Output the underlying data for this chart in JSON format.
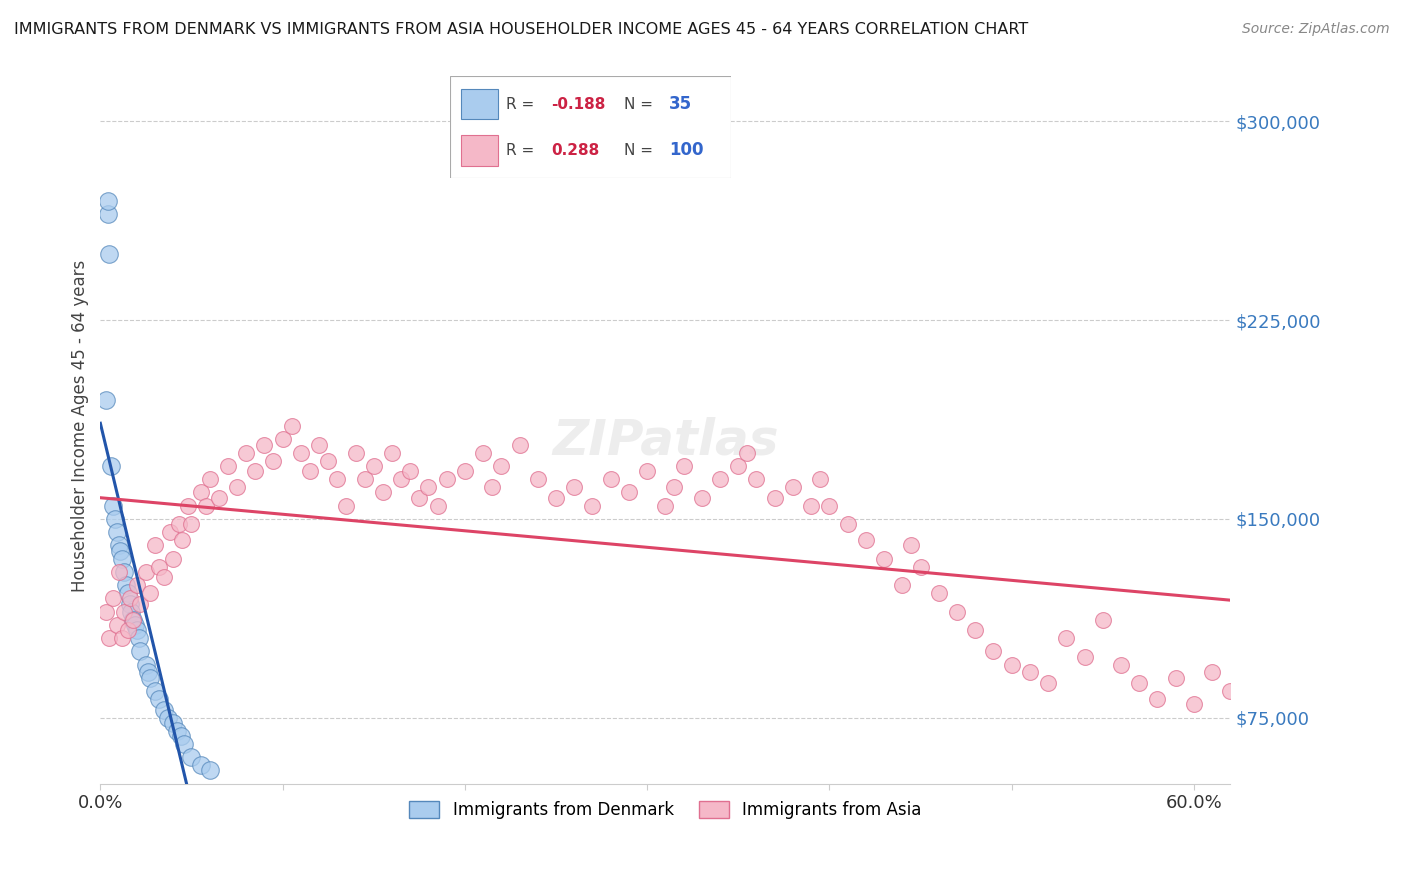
{
  "title": "IMMIGRANTS FROM DENMARK VS IMMIGRANTS FROM ASIA HOUSEHOLDER INCOME AGES 45 - 64 YEARS CORRELATION CHART",
  "source": "Source: ZipAtlas.com",
  "ylabel": "Householder Income Ages 45 - 64 years",
  "xlim": [
    0.0,
    0.62
  ],
  "ylim": [
    50000,
    320000
  ],
  "yticks": [
    75000,
    150000,
    225000,
    300000
  ],
  "ytick_labels": [
    "$75,000",
    "$150,000",
    "$225,000",
    "$300,000"
  ],
  "xticks": [
    0.0,
    0.1,
    0.2,
    0.3,
    0.4,
    0.5,
    0.6
  ],
  "xtick_labels": [
    "0.0%",
    "",
    "",
    "",
    "",
    "",
    "60.0%"
  ],
  "denmark_color": "#aaccee",
  "denmark_edge": "#5588bb",
  "asia_color": "#f5b8c8",
  "asia_edge": "#e07090",
  "denmark_line_color": "#2255aa",
  "asia_line_color": "#dd4466",
  "denmark_x": [
    0.003,
    0.004,
    0.004,
    0.005,
    0.006,
    0.007,
    0.008,
    0.009,
    0.01,
    0.011,
    0.012,
    0.013,
    0.014,
    0.015,
    0.016,
    0.017,
    0.018,
    0.019,
    0.02,
    0.021,
    0.022,
    0.025,
    0.026,
    0.027,
    0.03,
    0.032,
    0.035,
    0.037,
    0.04,
    0.042,
    0.044,
    0.046,
    0.05,
    0.055,
    0.06
  ],
  "denmark_y": [
    195000,
    265000,
    270000,
    250000,
    170000,
    155000,
    150000,
    145000,
    140000,
    138000,
    135000,
    130000,
    125000,
    122000,
    118000,
    115000,
    112000,
    110000,
    108000,
    105000,
    100000,
    95000,
    92000,
    90000,
    85000,
    82000,
    78000,
    75000,
    73000,
    70000,
    68000,
    65000,
    60000,
    57000,
    55000
  ],
  "asia_x": [
    0.003,
    0.005,
    0.007,
    0.009,
    0.01,
    0.012,
    0.013,
    0.015,
    0.016,
    0.018,
    0.02,
    0.022,
    0.025,
    0.027,
    0.03,
    0.032,
    0.035,
    0.038,
    0.04,
    0.043,
    0.045,
    0.048,
    0.05,
    0.055,
    0.058,
    0.06,
    0.065,
    0.07,
    0.075,
    0.08,
    0.085,
    0.09,
    0.095,
    0.1,
    0.105,
    0.11,
    0.115,
    0.12,
    0.125,
    0.13,
    0.135,
    0.14,
    0.145,
    0.15,
    0.155,
    0.16,
    0.165,
    0.17,
    0.175,
    0.18,
    0.185,
    0.19,
    0.2,
    0.21,
    0.215,
    0.22,
    0.23,
    0.24,
    0.25,
    0.26,
    0.27,
    0.28,
    0.29,
    0.3,
    0.31,
    0.315,
    0.32,
    0.33,
    0.34,
    0.35,
    0.355,
    0.36,
    0.37,
    0.38,
    0.39,
    0.395,
    0.4,
    0.41,
    0.42,
    0.43,
    0.44,
    0.445,
    0.45,
    0.46,
    0.47,
    0.48,
    0.49,
    0.5,
    0.51,
    0.52,
    0.53,
    0.54,
    0.55,
    0.56,
    0.57,
    0.58,
    0.59,
    0.6,
    0.61,
    0.62
  ],
  "asia_y": [
    115000,
    105000,
    120000,
    110000,
    130000,
    105000,
    115000,
    108000,
    120000,
    112000,
    125000,
    118000,
    130000,
    122000,
    140000,
    132000,
    128000,
    145000,
    135000,
    148000,
    142000,
    155000,
    148000,
    160000,
    155000,
    165000,
    158000,
    170000,
    162000,
    175000,
    168000,
    178000,
    172000,
    180000,
    185000,
    175000,
    168000,
    178000,
    172000,
    165000,
    155000,
    175000,
    165000,
    170000,
    160000,
    175000,
    165000,
    168000,
    158000,
    162000,
    155000,
    165000,
    168000,
    175000,
    162000,
    170000,
    178000,
    165000,
    158000,
    162000,
    155000,
    165000,
    160000,
    168000,
    155000,
    162000,
    170000,
    158000,
    165000,
    170000,
    175000,
    165000,
    158000,
    162000,
    155000,
    165000,
    155000,
    148000,
    142000,
    135000,
    125000,
    140000,
    132000,
    122000,
    115000,
    108000,
    100000,
    95000,
    92000,
    88000,
    105000,
    98000,
    112000,
    95000,
    88000,
    82000,
    90000,
    80000,
    92000,
    85000
  ]
}
